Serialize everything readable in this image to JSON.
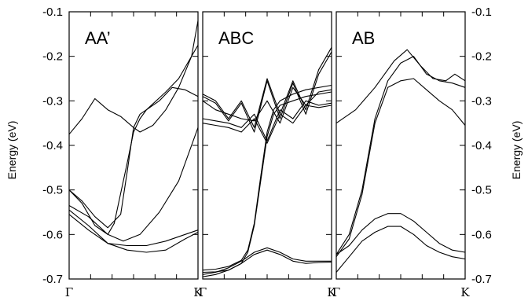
{
  "chart_data": {
    "type": "line",
    "ylabel": "Energy (eV)",
    "ylim": [
      -0.7,
      -0.1
    ],
    "yticks": [
      "-0.1",
      "-0.2",
      "-0.3",
      "-0.4",
      "-0.5",
      "-0.6",
      "-0.7"
    ],
    "xlim": [
      0,
      1
    ],
    "grid": false,
    "panels": [
      {
        "title": "AA’",
        "xticks": [
          "Γ",
          "K"
        ],
        "series": [
          {
            "points": [
              [
                0,
                -0.375
              ],
              [
                0.1,
                -0.34
              ],
              [
                0.2,
                -0.295
              ],
              [
                0.3,
                -0.32
              ],
              [
                0.4,
                -0.335
              ],
              [
                0.5,
                -0.36
              ],
              [
                0.55,
                -0.37
              ],
              [
                0.65,
                -0.355
              ],
              [
                0.75,
                -0.32
              ],
              [
                0.85,
                -0.27
              ],
              [
                0.95,
                -0.2
              ],
              [
                1,
                -0.12
              ]
            ]
          },
          {
            "points": [
              [
                0,
                -0.5
              ],
              [
                0.1,
                -0.53
              ],
              [
                0.2,
                -0.58
              ],
              [
                0.3,
                -0.6
              ],
              [
                0.35,
                -0.575
              ],
              [
                0.45,
                -0.44
              ],
              [
                0.5,
                -0.37
              ],
              [
                0.55,
                -0.34
              ],
              [
                0.6,
                -0.32
              ],
              [
                0.75,
                -0.28
              ],
              [
                0.85,
                -0.25
              ],
              [
                1,
                -0.175
              ]
            ]
          },
          {
            "points": [
              [
                0,
                -0.5
              ],
              [
                0.1,
                -0.525
              ],
              [
                0.2,
                -0.56
              ],
              [
                0.3,
                -0.585
              ],
              [
                0.4,
                -0.555
              ],
              [
                0.45,
                -0.46
              ],
              [
                0.5,
                -0.36
              ],
              [
                0.55,
                -0.33
              ],
              [
                0.7,
                -0.3
              ],
              [
                0.8,
                -0.27
              ],
              [
                0.9,
                -0.275
              ],
              [
                1,
                -0.29
              ]
            ]
          },
          {
            "points": [
              [
                0,
                -0.535
              ],
              [
                0.15,
                -0.56
              ],
              [
                0.3,
                -0.6
              ],
              [
                0.42,
                -0.615
              ],
              [
                0.55,
                -0.6
              ],
              [
                0.7,
                -0.55
              ],
              [
                0.85,
                -0.48
              ],
              [
                1,
                -0.36
              ]
            ]
          },
          {
            "points": [
              [
                0,
                -0.545
              ],
              [
                0.15,
                -0.58
              ],
              [
                0.3,
                -0.62
              ],
              [
                0.45,
                -0.635
              ],
              [
                0.6,
                -0.64
              ],
              [
                0.75,
                -0.635
              ],
              [
                0.9,
                -0.61
              ],
              [
                1,
                -0.595
              ]
            ]
          },
          {
            "points": [
              [
                0,
                -0.555
              ],
              [
                0.15,
                -0.59
              ],
              [
                0.3,
                -0.62
              ],
              [
                0.45,
                -0.625
              ],
              [
                0.6,
                -0.625
              ],
              [
                0.75,
                -0.615
              ],
              [
                0.9,
                -0.6
              ],
              [
                1,
                -0.59
              ]
            ]
          }
        ]
      },
      {
        "title": "ABC",
        "xticks": [
          "Γ",
          "K"
        ],
        "series": [
          {
            "points": [
              [
                0,
                -0.285
              ],
              [
                0.1,
                -0.3
              ],
              [
                0.2,
                -0.34
              ],
              [
                0.3,
                -0.3
              ],
              [
                0.4,
                -0.36
              ],
              [
                0.5,
                -0.25
              ],
              [
                0.6,
                -0.33
              ],
              [
                0.7,
                -0.255
              ],
              [
                0.8,
                -0.32
              ],
              [
                0.9,
                -0.23
              ],
              [
                1,
                -0.18
              ]
            ]
          },
          {
            "points": [
              [
                0,
                -0.29
              ],
              [
                0.1,
                -0.305
              ],
              [
                0.2,
                -0.345
              ],
              [
                0.3,
                -0.305
              ],
              [
                0.4,
                -0.37
              ],
              [
                0.5,
                -0.255
              ],
              [
                0.6,
                -0.34
              ],
              [
                0.7,
                -0.26
              ],
              [
                0.8,
                -0.33
              ],
              [
                0.9,
                -0.24
              ],
              [
                1,
                -0.19
              ]
            ]
          },
          {
            "points": [
              [
                0,
                -0.3
              ],
              [
                0.1,
                -0.32
              ],
              [
                0.2,
                -0.33
              ],
              [
                0.3,
                -0.34
              ],
              [
                0.4,
                -0.345
              ],
              [
                0.5,
                -0.3
              ],
              [
                0.6,
                -0.35
              ],
              [
                0.7,
                -0.27
              ],
              [
                0.8,
                -0.31
              ],
              [
                0.9,
                -0.28
              ],
              [
                1,
                -0.275
              ]
            ]
          },
          {
            "points": [
              [
                0,
                -0.34
              ],
              [
                0.1,
                -0.345
              ],
              [
                0.2,
                -0.35
              ],
              [
                0.3,
                -0.36
              ],
              [
                0.4,
                -0.33
              ],
              [
                0.5,
                -0.39
              ],
              [
                0.6,
                -0.32
              ],
              [
                0.7,
                -0.34
              ],
              [
                0.8,
                -0.3
              ],
              [
                0.9,
                -0.31
              ],
              [
                1,
                -0.305
              ]
            ]
          },
          {
            "points": [
              [
                0,
                -0.35
              ],
              [
                0.1,
                -0.355
              ],
              [
                0.2,
                -0.36
              ],
              [
                0.3,
                -0.37
              ],
              [
                0.4,
                -0.34
              ],
              [
                0.5,
                -0.395
              ],
              [
                0.6,
                -0.33
              ],
              [
                0.7,
                -0.35
              ],
              [
                0.8,
                -0.31
              ],
              [
                0.9,
                -0.315
              ],
              [
                1,
                -0.31
              ]
            ]
          },
          {
            "points": [
              [
                0,
                -0.685
              ],
              [
                0.1,
                -0.684
              ],
              [
                0.2,
                -0.68
              ],
              [
                0.3,
                -0.665
              ],
              [
                0.35,
                -0.64
              ],
              [
                0.4,
                -0.58
              ],
              [
                0.45,
                -0.48
              ],
              [
                0.5,
                -0.38
              ],
              [
                0.55,
                -0.33
              ],
              [
                0.6,
                -0.31
              ],
              [
                0.7,
                -0.3
              ],
              [
                0.8,
                -0.29
              ],
              [
                1,
                -0.28
              ]
            ]
          },
          {
            "points": [
              [
                0,
                -0.68
              ],
              [
                0.1,
                -0.678
              ],
              [
                0.2,
                -0.672
              ],
              [
                0.3,
                -0.658
              ],
              [
                0.35,
                -0.635
              ],
              [
                0.4,
                -0.575
              ],
              [
                0.45,
                -0.47
              ],
              [
                0.5,
                -0.37
              ],
              [
                0.55,
                -0.32
              ],
              [
                0.6,
                -0.3
              ],
              [
                0.7,
                -0.285
              ],
              [
                0.8,
                -0.275
              ],
              [
                1,
                -0.265
              ]
            ]
          },
          {
            "points": [
              [
                0,
                -0.69
              ],
              [
                0.1,
                -0.685
              ],
              [
                0.2,
                -0.675
              ],
              [
                0.3,
                -0.66
              ],
              [
                0.4,
                -0.64
              ],
              [
                0.5,
                -0.63
              ],
              [
                0.6,
                -0.64
              ],
              [
                0.7,
                -0.655
              ],
              [
                0.8,
                -0.66
              ],
              [
                0.9,
                -0.66
              ],
              [
                1,
                -0.66
              ]
            ]
          },
          {
            "points": [
              [
                0,
                -0.695
              ],
              [
                0.1,
                -0.69
              ],
              [
                0.2,
                -0.68
              ],
              [
                0.3,
                -0.665
              ],
              [
                0.4,
                -0.645
              ],
              [
                0.5,
                -0.635
              ],
              [
                0.6,
                -0.645
              ],
              [
                0.7,
                -0.66
              ],
              [
                0.8,
                -0.665
              ],
              [
                0.9,
                -0.663
              ],
              [
                1,
                -0.662
              ]
            ]
          }
        ]
      },
      {
        "title": "AB",
        "xticks": [
          "Γ",
          "K"
        ],
        "series": [
          {
            "points": [
              [
                0,
                -0.35
              ],
              [
                0.15,
                -0.32
              ],
              [
                0.3,
                -0.27
              ],
              [
                0.45,
                -0.21
              ],
              [
                0.55,
                -0.185
              ],
              [
                0.65,
                -0.22
              ],
              [
                0.75,
                -0.25
              ],
              [
                0.85,
                -0.255
              ],
              [
                0.92,
                -0.24
              ],
              [
                1,
                -0.255
              ]
            ]
          },
          {
            "points": [
              [
                0,
                -0.645
              ],
              [
                0.1,
                -0.6
              ],
              [
                0.2,
                -0.5
              ],
              [
                0.3,
                -0.34
              ],
              [
                0.4,
                -0.255
              ],
              [
                0.5,
                -0.215
              ],
              [
                0.6,
                -0.2
              ],
              [
                0.7,
                -0.24
              ],
              [
                0.8,
                -0.255
              ],
              [
                0.9,
                -0.26
              ],
              [
                1,
                -0.27
              ]
            ]
          },
          {
            "points": [
              [
                0,
                -0.65
              ],
              [
                0.1,
                -0.61
              ],
              [
                0.2,
                -0.51
              ],
              [
                0.3,
                -0.35
              ],
              [
                0.4,
                -0.27
              ],
              [
                0.5,
                -0.255
              ],
              [
                0.6,
                -0.25
              ],
              [
                0.7,
                -0.275
              ],
              [
                0.8,
                -0.3
              ],
              [
                0.9,
                -0.32
              ],
              [
                1,
                -0.355
              ]
            ]
          },
          {
            "points": [
              [
                0,
                -0.645
              ],
              [
                0.1,
                -0.625
              ],
              [
                0.2,
                -0.59
              ],
              [
                0.3,
                -0.565
              ],
              [
                0.4,
                -0.553
              ],
              [
                0.5,
                -0.553
              ],
              [
                0.6,
                -0.57
              ],
              [
                0.7,
                -0.595
              ],
              [
                0.8,
                -0.62
              ],
              [
                0.9,
                -0.635
              ],
              [
                1,
                -0.64
              ]
            ]
          },
          {
            "points": [
              [
                0,
                -0.685
              ],
              [
                0.1,
                -0.65
              ],
              [
                0.2,
                -0.615
              ],
              [
                0.3,
                -0.595
              ],
              [
                0.4,
                -0.582
              ],
              [
                0.5,
                -0.582
              ],
              [
                0.6,
                -0.6
              ],
              [
                0.7,
                -0.625
              ],
              [
                0.8,
                -0.64
              ],
              [
                0.9,
                -0.65
              ],
              [
                1,
                -0.655
              ]
            ]
          }
        ]
      }
    ]
  }
}
